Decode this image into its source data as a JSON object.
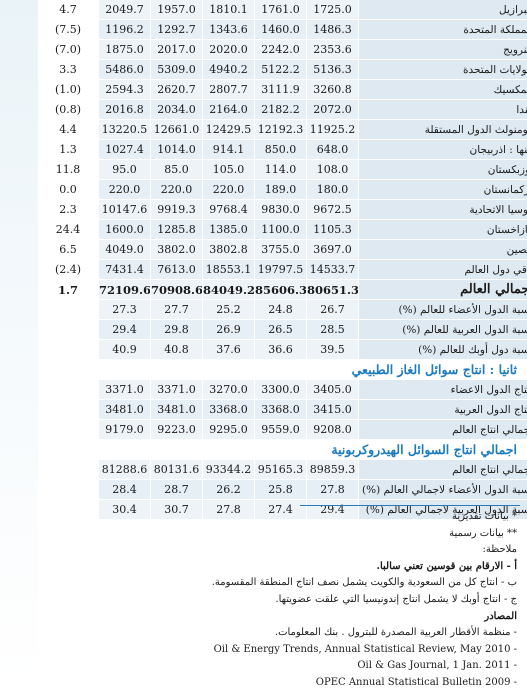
{
  "producers": [
    {
      "name": "البرازيل",
      "v2005": "1725.0",
      "v2006": "1761.0",
      "v2007": "1810.1",
      "v2008": "1957.0",
      "v2009": "2049.7",
      "change": "4.7"
    },
    {
      "name": "المملكة المتحدة",
      "v2005": "1486.3",
      "v2006": "1460.0",
      "v2007": "1343.6",
      "v2008": "1292.7",
      "v2009": "1196.2",
      "change": "(7.5)"
    },
    {
      "name": "النرويج",
      "v2005": "2353.6",
      "v2006": "2242.0",
      "v2007": "2020.0",
      "v2008": "2017.0",
      "v2009": "1875.0",
      "change": "(7.0)"
    },
    {
      "name": "الولايات المتحدة",
      "v2005": "5136.3",
      "v2006": "5122.2",
      "v2007": "4940.2",
      "v2008": "5309.0",
      "v2009": "5486.0",
      "change": "3.3"
    },
    {
      "name": "المكسيك",
      "v2005": "3260.8",
      "v2006": "3111.9",
      "v2007": "2807.7",
      "v2008": "2620.7",
      "v2009": "2594.3",
      "change": "(1.0)"
    },
    {
      "name": "كندا",
      "v2005": "2072.0",
      "v2006": "2182.2",
      "v2007": "2164.0",
      "v2008": "2034.0",
      "v2009": "2016.8",
      "change": "(0.8)"
    },
    {
      "name": "كومنولث الدول المستقلة",
      "v2005": "11925.2",
      "v2006": "12192.3",
      "v2007": "12429.5",
      "v2008": "12661.0",
      "v2009": "13220.5",
      "change": "4.4"
    },
    {
      "name": "منها : اذربيجان",
      "v2005": "648.0",
      "v2006": "850.0",
      "v2007": "914.1",
      "v2008": "1014.0",
      "v2009": "1027.4",
      "change": "1.3"
    },
    {
      "name": "اوزبكستان",
      "v2005": "108.0",
      "v2006": "114.0",
      "v2007": "105.0",
      "v2008": "85.0",
      "v2009": "95.0",
      "change": "11.8"
    },
    {
      "name": "تركمانستان",
      "v2005": "180.0",
      "v2006": "189.0",
      "v2007": "220.0",
      "v2008": "220.0",
      "v2009": "220.0",
      "change": "0.0"
    },
    {
      "name": "روسيا الاتحادية",
      "v2005": "9672.5",
      "v2006": "9830.0",
      "v2007": "9768.4",
      "v2008": "9919.3",
      "v2009": "10147.6",
      "change": "2.3"
    },
    {
      "name": "كازاخستان",
      "v2005": "1105.3",
      "v2006": "1100.0",
      "v2007": "1385.0",
      "v2008": "1285.8",
      "v2009": "1600.0",
      "change": "24.4"
    },
    {
      "name": "الصين",
      "v2005": "3697.0",
      "v2006": "3755.0",
      "v2007": "3802.8",
      "v2008": "3802.0",
      "v2009": "4049.0",
      "change": "6.5"
    },
    {
      "name": "باقي دول العالم",
      "v2005": "14533.7",
      "v2006": "19797.5",
      "v2007": "18553.1",
      "v2008": "7613.0",
      "v2009": "7431.4",
      "change": "(2.4)"
    }
  ],
  "world_total": {
    "name": "اجمالي العالم",
    "v2005": "80651.3",
    "v2006": "85606.3",
    "v2007": "84049.2",
    "v2008": "70908.6",
    "v2009": "72109.6",
    "change": "1.7"
  },
  "shares": [
    {
      "name": "نسبة الدول الأعضاء للعالم (%)",
      "v2005": "26.7",
      "v2006": "24.8",
      "v2007": "25.2",
      "v2008": "27.7",
      "v2009": "27.3"
    },
    {
      "name": "نسبة الدول العربية للعالم (%)",
      "v2005": "28.5",
      "v2006": "26.5",
      "v2007": "26.9",
      "v2008": "29.8",
      "v2009": "29.4"
    },
    {
      "name": "نسبة دول أوبك للعالم (%)",
      "v2005": "39.5",
      "v2006": "36.6",
      "v2007": "37.6",
      "v2008": "40.8",
      "v2009": "40.9"
    }
  ],
  "section2": {
    "title": "ثانيا : انتاج سوائل الغاز الطبيعي",
    "rows": [
      {
        "name": "انتاج الدول الاعضاء",
        "v2005": "3405.0",
        "v2006": "3300.0",
        "v2007": "3270.0",
        "v2008": "3371.0",
        "v2009": "3371.0"
      },
      {
        "name": "انتاج الدول العربية",
        "v2005": "3415.0",
        "v2006": "3368.0",
        "v2007": "3368.0",
        "v2008": "3481.0",
        "v2009": "3481.0"
      },
      {
        "name": "اجمالي انتاج العالم",
        "v2005": "9208.0",
        "v2006": "9559.0",
        "v2007": "9295.0",
        "v2008": "9223.0",
        "v2009": "9179.0"
      }
    ]
  },
  "section3": {
    "title": "اجمالي انتاج السوائل الهيدروكربونية",
    "rows": [
      {
        "name": "اجمالي انتاج العالم",
        "v2005": "89859.3",
        "v2006": "95165.3",
        "v2007": "93344.2",
        "v2008": "80131.6",
        "v2009": "81288.6"
      },
      {
        "name": "نسبة الدول الأعضاء لاجمالي العالم (%)",
        "v2005": "27.8",
        "v2006": "25.8",
        "v2007": "26.2",
        "v2008": "28.7",
        "v2009": "28.4"
      },
      {
        "name": "نسبة الدول العربية لاجمالي العالم (%)",
        "v2005": "29.4",
        "v2006": "27.4",
        "v2007": "27.8",
        "v2008": "30.7",
        "v2009": "30.4"
      }
    ]
  },
  "notes": {
    "n1": "* بيانات تقديرية",
    "n2": "** بيانات رسمية",
    "remark": "ملاحظة:",
    "a": "أ - الارقام بين قوسين تعني سالبا.",
    "b": "ب - انتاج كل من السعودية والكويت يشمل نصف انتاج المنطقة المقسومة.",
    "c": "ج - انتاج أوبك لا يشمل انتاج إندونيسيا التي علقت عضويتها.",
    "sources": "المصادر",
    "s1": "- منظمة الأقطار العربية المصدرة للبترول . بنك المعلومات.",
    "s2": "Oil & Energy Trends, Annual Statistical Review, May 2010 -",
    "s3": "Oil & Gas Journal, 1 Jan. 2011 -",
    "s4": "OPEC Annual Statistical Bulletin 2009 -"
  }
}
